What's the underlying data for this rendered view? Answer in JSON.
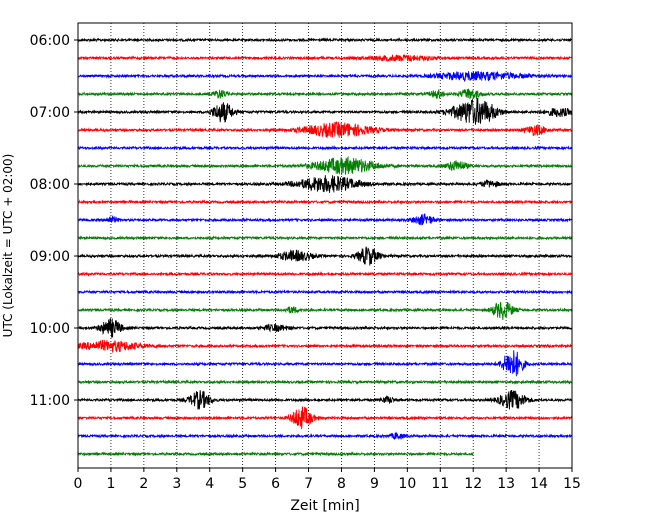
{
  "chart_data": {
    "type": "line",
    "title": "",
    "xlabel": "Zeit  [min]",
    "ylabel": "UTC (Lokalzeit = UTC + 02:00)",
    "xlim": [
      0,
      15
    ],
    "x_ticks": [
      "0",
      "1",
      "2",
      "3",
      "4",
      "5",
      "6",
      "7",
      "8",
      "9",
      "10",
      "11",
      "12",
      "13",
      "14",
      "15"
    ],
    "y_ticks": [
      "06:00",
      "07:00",
      "08:00",
      "09:00",
      "10:00",
      "11:00"
    ],
    "grid": "vertical-dotted",
    "trace_interval_minutes": 15,
    "colors": [
      "#000000",
      "#ff0000",
      "#0000ff",
      "#008000"
    ],
    "series": [
      {
        "start": "06:00",
        "color": "#000000",
        "end_min": 15,
        "events": []
      },
      {
        "start": "06:15",
        "color": "#ff0000",
        "end_min": 15,
        "events": [
          {
            "t": 9.8,
            "amp": 2.5,
            "w": 1.0
          }
        ]
      },
      {
        "start": "06:30",
        "color": "#0000ff",
        "end_min": 15,
        "events": [
          {
            "t": 12.5,
            "amp": 3,
            "w": 1.2
          },
          {
            "t": 11.5,
            "amp": 2,
            "w": 0.8
          }
        ]
      },
      {
        "start": "06:45",
        "color": "#008000",
        "end_min": 15,
        "events": [
          {
            "t": 4.3,
            "amp": 4,
            "w": 0.2
          },
          {
            "t": 10.9,
            "amp": 4,
            "w": 0.2
          },
          {
            "t": 11.9,
            "amp": 5,
            "w": 0.3
          }
        ]
      },
      {
        "start": "07:00",
        "color": "#000000",
        "end_min": 15,
        "events": [
          {
            "t": 4.4,
            "amp": 10,
            "w": 0.3
          },
          {
            "t": 11.9,
            "amp": 9,
            "w": 0.6
          },
          {
            "t": 12.3,
            "amp": 6,
            "w": 0.5
          },
          {
            "t": 14.6,
            "amp": 4,
            "w": 0.4
          }
        ]
      },
      {
        "start": "07:15",
        "color": "#ff0000",
        "end_min": 15,
        "events": [
          {
            "t": 7.9,
            "amp": 7,
            "w": 1.0
          },
          {
            "t": 13.9,
            "amp": 5,
            "w": 0.3
          }
        ]
      },
      {
        "start": "07:30",
        "color": "#0000ff",
        "end_min": 15,
        "events": []
      },
      {
        "start": "07:45",
        "color": "#008000",
        "end_min": 15,
        "events": [
          {
            "t": 8.1,
            "amp": 8,
            "w": 0.9
          },
          {
            "t": 11.5,
            "amp": 5,
            "w": 0.3
          }
        ]
      },
      {
        "start": "08:00",
        "color": "#000000",
        "end_min": 15,
        "events": [
          {
            "t": 7.6,
            "amp": 8,
            "w": 0.9
          },
          {
            "t": 12.5,
            "amp": 3,
            "w": 0.3
          }
        ]
      },
      {
        "start": "08:15",
        "color": "#ff0000",
        "end_min": 15,
        "events": []
      },
      {
        "start": "08:30",
        "color": "#0000ff",
        "end_min": 15,
        "events": [
          {
            "t": 10.5,
            "amp": 5,
            "w": 0.3
          },
          {
            "t": 1.0,
            "amp": 3,
            "w": 0.2
          }
        ]
      },
      {
        "start": "08:45",
        "color": "#008000",
        "end_min": 15,
        "events": []
      },
      {
        "start": "09:00",
        "color": "#000000",
        "end_min": 15,
        "events": [
          {
            "t": 6.6,
            "amp": 5,
            "w": 0.5
          },
          {
            "t": 8.8,
            "amp": 9,
            "w": 0.3
          }
        ]
      },
      {
        "start": "09:15",
        "color": "#ff0000",
        "end_min": 15,
        "events": []
      },
      {
        "start": "09:30",
        "color": "#0000ff",
        "end_min": 15,
        "events": []
      },
      {
        "start": "09:45",
        "color": "#008000",
        "end_min": 15,
        "events": [
          {
            "t": 12.9,
            "amp": 9,
            "w": 0.3
          },
          {
            "t": 6.5,
            "amp": 3,
            "w": 0.2
          }
        ]
      },
      {
        "start": "10:00",
        "color": "#000000",
        "end_min": 15,
        "events": [
          {
            "t": 1.0,
            "amp": 9,
            "w": 0.3
          },
          {
            "t": 6.0,
            "amp": 3,
            "w": 0.4
          }
        ]
      },
      {
        "start": "10:15",
        "color": "#ff0000",
        "end_min": 15,
        "events": [
          {
            "t": 1.0,
            "amp": 5,
            "w": 0.9
          }
        ]
      },
      {
        "start": "10:30",
        "color": "#0000ff",
        "end_min": 15,
        "events": [
          {
            "t": 13.2,
            "amp": 14,
            "w": 0.3
          }
        ]
      },
      {
        "start": "10:45",
        "color": "#008000",
        "end_min": 15,
        "events": []
      },
      {
        "start": "11:00",
        "color": "#000000",
        "end_min": 15,
        "events": [
          {
            "t": 3.7,
            "amp": 9,
            "w": 0.3
          },
          {
            "t": 9.4,
            "amp": 3,
            "w": 0.2
          },
          {
            "t": 13.2,
            "amp": 9,
            "w": 0.4
          }
        ]
      },
      {
        "start": "11:15",
        "color": "#ff0000",
        "end_min": 15,
        "events": [
          {
            "t": 6.8,
            "amp": 11,
            "w": 0.3
          }
        ]
      },
      {
        "start": "11:30",
        "color": "#0000ff",
        "end_min": 15,
        "events": [
          {
            "t": 9.7,
            "amp": 3,
            "w": 0.2
          }
        ]
      },
      {
        "start": "11:45",
        "color": "#008000",
        "end_min": 12,
        "events": []
      }
    ]
  }
}
